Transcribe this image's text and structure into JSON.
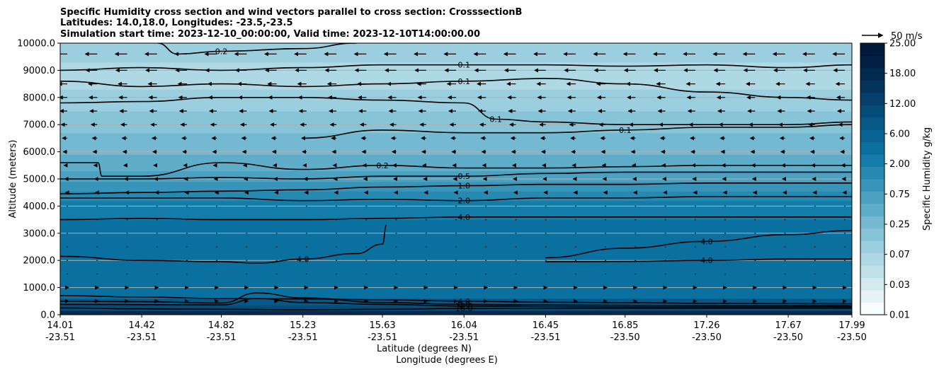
{
  "chart_data": {
    "type": "heatmap",
    "title_lines": [
      "Specific Humidity cross section and wind vectors parallel to cross section: CrosssectionB",
      "Latitudes: 14.0,18.0, Longitudes: -23.5,-23.5",
      "Simulation start time: 2023-12-10_00:00:00, Valid time: 2023-12-10T14:00:00.00"
    ],
    "ylabel": "Altitude (meters)",
    "xlabel_lat": "Latitude (degrees N)",
    "xlabel_lon": "Longitude (degrees E)",
    "ylim": [
      0,
      10000
    ],
    "xlim": [
      14.01,
      17.99
    ],
    "y_ticks": [
      {
        "value": 0,
        "label": "0.0"
      },
      {
        "value": 1000,
        "label": "1000.0"
      },
      {
        "value": 2000,
        "label": "2000.0"
      },
      {
        "value": 3000,
        "label": "3000.0"
      },
      {
        "value": 4000,
        "label": "4000.0"
      },
      {
        "value": 5000,
        "label": "5000.0"
      },
      {
        "value": 6000,
        "label": "6000.0"
      },
      {
        "value": 7000,
        "label": "7000.0"
      },
      {
        "value": 8000,
        "label": "8000.0"
      },
      {
        "value": 9000,
        "label": "9000.0"
      },
      {
        "value": 10000,
        "label": "10000.0"
      }
    ],
    "x_ticks": [
      {
        "lat": "14.01",
        "lon": "-23.51"
      },
      {
        "lat": "14.42",
        "lon": "-23.51"
      },
      {
        "lat": "14.82",
        "lon": "-23.51"
      },
      {
        "lat": "15.23",
        "lon": "-23.51"
      },
      {
        "lat": "15.63",
        "lon": "-23.51"
      },
      {
        "lat": "16.04",
        "lon": "-23.51"
      },
      {
        "lat": "16.45",
        "lon": "-23.51"
      },
      {
        "lat": "16.85",
        "lon": "-23.50"
      },
      {
        "lat": "17.26",
        "lon": "-23.50"
      },
      {
        "lat": "17.67",
        "lon": "-23.50"
      },
      {
        "lat": "17.99",
        "lon": "-23.50"
      }
    ],
    "grid": "horizontal",
    "colorbar": {
      "label": "Specific Humidity g/kg",
      "tick_labels": [
        "0.01",
        "0.03",
        "0.07",
        "0.25",
        "0.75",
        "2.00",
        "6.00",
        "12.00",
        "18.00",
        "25.00"
      ],
      "colors": [
        "#f7fcfd",
        "#e6f3f6",
        "#d4eaf0",
        "#c1e1ea",
        "#aed8e4",
        "#9bcede",
        "#88c4d8",
        "#74b9d1",
        "#60adc9",
        "#4ca1c1",
        "#3895b9",
        "#2589b1",
        "#147ca9",
        "#0a70a0",
        "#086494",
        "#075886",
        "#064c78",
        "#05406a",
        "#04345c",
        "#032a50",
        "#022044",
        "#011a3c"
      ]
    },
    "quiver_key": {
      "label": "50 m/s",
      "speed": 50
    },
    "humidity_bands": [
      {
        "y": 0,
        "value": 18.0
      },
      {
        "y": 150,
        "value": 12.0
      },
      {
        "y": 350,
        "value": 8.0
      },
      {
        "y": 600,
        "value": 5.0
      },
      {
        "y": 2100,
        "value": 4.0
      },
      {
        "y": 3500,
        "value": 3.0
      },
      {
        "y": 4200,
        "value": 1.8
      },
      {
        "y": 4550,
        "value": 1.2
      },
      {
        "y": 4900,
        "value": 0.7
      },
      {
        "y": 5300,
        "value": 0.4
      },
      {
        "y": 5900,
        "value": 0.22
      },
      {
        "y": 6700,
        "value": 0.15
      },
      {
        "y": 7500,
        "value": 0.1
      },
      {
        "y": 8300,
        "value": 0.06
      },
      {
        "y": 9300,
        "value": 0.09
      },
      {
        "y": 10000,
        "value": 0.12
      }
    ],
    "contours": [
      {
        "level": 16.0,
        "label": "16.0",
        "points": [
          [
            14.01,
            250
          ],
          [
            14.4,
            220
          ],
          [
            14.82,
            200
          ],
          [
            15.23,
            180
          ],
          [
            15.63,
            200
          ],
          [
            16.04,
            230
          ],
          [
            16.45,
            240
          ],
          [
            16.85,
            240
          ],
          [
            17.26,
            240
          ],
          [
            17.67,
            240
          ],
          [
            17.99,
            240
          ]
        ]
      },
      {
        "level": 12.0,
        "label": "12.0",
        "points": [
          [
            14.01,
            380
          ],
          [
            14.42,
            370
          ],
          [
            14.82,
            360
          ],
          [
            15.0,
            600
          ],
          [
            15.23,
            450
          ],
          [
            15.63,
            380
          ],
          [
            16.04,
            320
          ],
          [
            16.45,
            300
          ],
          [
            16.85,
            290
          ],
          [
            17.26,
            290
          ],
          [
            17.67,
            290
          ],
          [
            17.99,
            290
          ]
        ]
      },
      {
        "level": 8.0,
        "label": "8.0",
        "points": [
          [
            14.01,
            500
          ],
          [
            14.42,
            480
          ],
          [
            14.82,
            430
          ],
          [
            15.0,
            800
          ],
          [
            15.23,
            620
          ],
          [
            15.63,
            450
          ],
          [
            16.04,
            380
          ],
          [
            16.45,
            360
          ],
          [
            16.85,
            350
          ],
          [
            17.26,
            340
          ],
          [
            17.67,
            340
          ],
          [
            17.99,
            330
          ]
        ]
      },
      {
        "level": 4.0,
        "label": "4.0",
        "points": [
          [
            14.01,
            700
          ],
          [
            14.42,
            650
          ],
          [
            14.82,
            600
          ],
          [
            15.23,
            580
          ],
          [
            15.63,
            550
          ],
          [
            16.04,
            500
          ],
          [
            16.45,
            460
          ],
          [
            16.85,
            440
          ],
          [
            17.26,
            420
          ],
          [
            17.67,
            410
          ],
          [
            17.99,
            400
          ]
        ]
      },
      {
        "level": 4.0,
        "label": "4.0",
        "points": [
          [
            14.01,
            2150
          ],
          [
            14.42,
            2000
          ],
          [
            14.82,
            1950
          ],
          [
            15.0,
            1900
          ],
          [
            15.23,
            2050
          ],
          [
            15.5,
            2250
          ],
          [
            15.63,
            2600
          ],
          [
            15.65,
            3300
          ]
        ]
      },
      {
        "level": 4.0,
        "label": "4.0",
        "points": [
          [
            16.45,
            2100
          ],
          [
            16.85,
            2450
          ],
          [
            17.26,
            2700
          ],
          [
            17.67,
            2950
          ],
          [
            17.99,
            3100
          ]
        ]
      },
      {
        "level": 4.0,
        "label": "4.0",
        "points": [
          [
            16.45,
            1950
          ],
          [
            16.85,
            1960
          ],
          [
            17.26,
            2000
          ],
          [
            17.67,
            2050
          ],
          [
            17.99,
            2050
          ]
        ]
      },
      {
        "level": 4.0,
        "label": "4.0",
        "points": [
          [
            14.01,
            3500
          ],
          [
            14.42,
            3550
          ],
          [
            14.82,
            3500
          ],
          [
            15.23,
            3500
          ],
          [
            15.63,
            3550
          ],
          [
            16.04,
            3600
          ],
          [
            16.45,
            3600
          ],
          [
            16.85,
            3600
          ],
          [
            17.26,
            3600
          ],
          [
            17.67,
            3600
          ],
          [
            17.99,
            3600
          ]
        ]
      },
      {
        "level": 2.0,
        "label": "2.0",
        "points": [
          [
            14.01,
            4300
          ],
          [
            14.42,
            4300
          ],
          [
            14.82,
            4300
          ],
          [
            15.23,
            4200
          ],
          [
            15.63,
            4250
          ],
          [
            16.04,
            4200
          ],
          [
            16.45,
            4300
          ],
          [
            16.85,
            4300
          ],
          [
            17.26,
            4350
          ],
          [
            17.67,
            4350
          ],
          [
            17.99,
            4350
          ]
        ]
      },
      {
        "level": 1.0,
        "label": "1.0",
        "points": [
          [
            14.01,
            4450
          ],
          [
            14.42,
            4500
          ],
          [
            14.82,
            4550
          ],
          [
            15.23,
            4600
          ],
          [
            15.63,
            4700
          ],
          [
            16.04,
            4750
          ],
          [
            16.45,
            4800
          ],
          [
            16.85,
            4800
          ],
          [
            17.26,
            4850
          ],
          [
            17.67,
            4850
          ],
          [
            17.99,
            4850
          ]
        ]
      },
      {
        "level": 0.5,
        "label": "0.5",
        "points": [
          [
            14.01,
            5000
          ],
          [
            14.42,
            5000
          ],
          [
            14.82,
            5050
          ],
          [
            15.23,
            5000
          ],
          [
            15.63,
            5100
          ],
          [
            16.04,
            5100
          ],
          [
            16.45,
            5200
          ],
          [
            16.85,
            5250
          ],
          [
            17.26,
            5250
          ],
          [
            17.67,
            5250
          ],
          [
            17.99,
            5250
          ]
        ]
      },
      {
        "level": 0.2,
        "label": "0.2",
        "points": [
          [
            14.01,
            5600
          ],
          [
            14.2,
            5600
          ],
          [
            14.22,
            5100
          ],
          [
            14.42,
            5100
          ],
          [
            14.82,
            5600
          ],
          [
            15.23,
            5350
          ],
          [
            15.63,
            5500
          ],
          [
            16.04,
            5400
          ],
          [
            16.45,
            5400
          ],
          [
            16.85,
            5450
          ],
          [
            17.26,
            5500
          ],
          [
            17.67,
            5500
          ],
          [
            17.99,
            5500
          ]
        ]
      },
      {
        "level": 0.1,
        "label": "0.1",
        "points": [
          [
            15.23,
            6500
          ],
          [
            15.63,
            6800
          ],
          [
            16.04,
            6700
          ],
          [
            16.45,
            6700
          ],
          [
            16.85,
            6800
          ],
          [
            17.26,
            6900
          ],
          [
            17.67,
            6900
          ],
          [
            17.99,
            7000
          ]
        ]
      },
      {
        "level": 0.1,
        "label": "0.1",
        "points": [
          [
            14.01,
            7800
          ],
          [
            14.42,
            7850
          ],
          [
            14.82,
            8000
          ],
          [
            15.23,
            8000
          ],
          [
            15.63,
            7900
          ],
          [
            16.04,
            7800
          ],
          [
            16.2,
            7200
          ],
          [
            16.45,
            7100
          ],
          [
            16.85,
            7000
          ],
          [
            17.26,
            7000
          ],
          [
            17.67,
            7000
          ],
          [
            17.99,
            7100
          ]
        ]
      },
      {
        "level": 0.1,
        "label": "0.1",
        "points": [
          [
            14.01,
            8600
          ],
          [
            14.42,
            8400
          ],
          [
            14.82,
            8500
          ],
          [
            15.23,
            8400
          ],
          [
            15.63,
            8500
          ],
          [
            16.04,
            8600
          ],
          [
            16.45,
            8700
          ],
          [
            16.85,
            8500
          ],
          [
            17.26,
            8200
          ],
          [
            17.67,
            8000
          ],
          [
            17.99,
            7900
          ]
        ]
      },
      {
        "level": 0.1,
        "label": "0.1",
        "points": [
          [
            14.01,
            9000
          ],
          [
            14.42,
            9100
          ],
          [
            14.82,
            9000
          ],
          [
            15.23,
            9100
          ],
          [
            15.63,
            9200
          ],
          [
            16.04,
            9200
          ],
          [
            16.45,
            9200
          ],
          [
            16.85,
            9150
          ],
          [
            17.26,
            9200
          ],
          [
            17.67,
            9100
          ],
          [
            17.99,
            9200
          ]
        ]
      },
      {
        "level": 0.2,
        "label": "0.2",
        "points": [
          [
            14.5,
            10000
          ],
          [
            14.6,
            9600
          ],
          [
            14.82,
            9700
          ],
          [
            15.23,
            9800
          ],
          [
            15.5,
            10000
          ]
        ]
      }
    ],
    "wind_field": [
      {
        "y": 9600,
        "u": -30
      },
      {
        "y": 9000,
        "u": -28
      },
      {
        "y": 8500,
        "u": -22
      },
      {
        "y": 8000,
        "u": -20
      },
      {
        "y": 7500,
        "u": -18
      },
      {
        "y": 7000,
        "u": -15
      },
      {
        "y": 6500,
        "u": -12
      },
      {
        "y": 6000,
        "u": -10
      },
      {
        "y": 5500,
        "u": -8
      },
      {
        "y": 5000,
        "u": -6
      },
      {
        "y": 4500,
        "u": -4
      },
      {
        "y": 4000,
        "u": -2
      },
      {
        "y": 3500,
        "u": -1
      },
      {
        "y": 3000,
        "u": 0
      },
      {
        "y": 2500,
        "u": 1
      },
      {
        "y": 2000,
        "u": 2
      },
      {
        "y": 1500,
        "u": 2
      },
      {
        "y": 1000,
        "u": 3
      },
      {
        "y": 500,
        "u": 3
      }
    ]
  }
}
